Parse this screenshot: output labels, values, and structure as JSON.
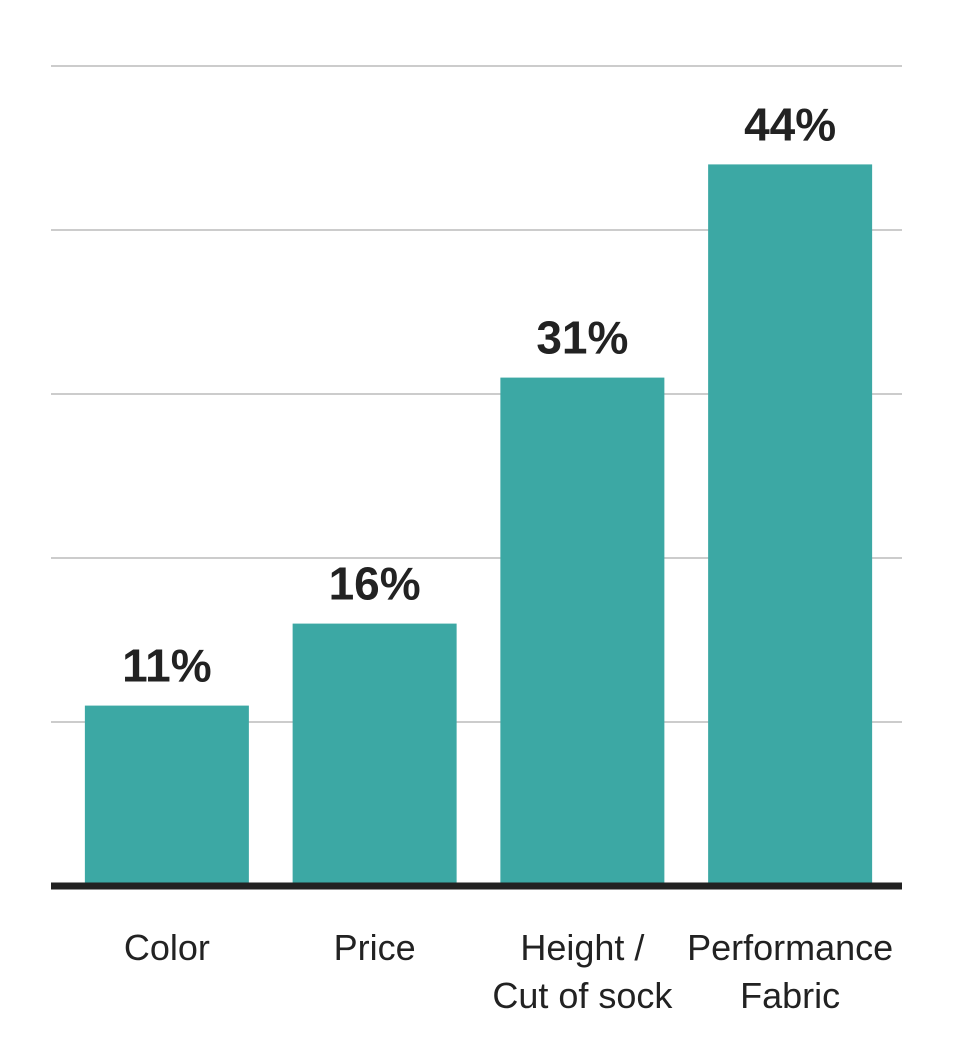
{
  "chart_data": {
    "type": "bar",
    "categories": [
      "Color",
      "Price",
      "Height /\nCut of sock",
      "Performance\nFabric"
    ],
    "values": [
      11,
      16,
      31,
      44
    ],
    "value_labels": [
      "11%",
      "16%",
      "31%",
      "44%"
    ],
    "color": "#3ca8a4",
    "ylim": [
      0,
      50
    ],
    "yticks": [
      0,
      10,
      20,
      30,
      40,
      50
    ],
    "grid": true
  }
}
